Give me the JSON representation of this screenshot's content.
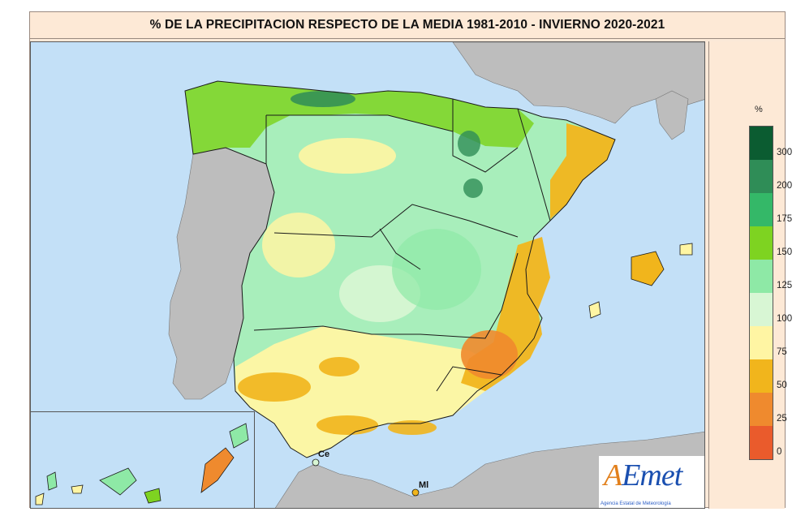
{
  "title": "% DE LA PRECIPITACION RESPECTO DE LA MEDIA  1981-2010 - INVIERNO 2020-2021",
  "legend": {
    "unit": "%",
    "ticks": [
      "300",
      "200",
      "175",
      "150",
      "125",
      "100",
      "75",
      "50",
      "25",
      "0"
    ],
    "colors": [
      "#0b5c31",
      "#2f8d57",
      "#34b868",
      "#7ed321",
      "#8ee9a6",
      "#d8f6d4",
      "#fff5a3",
      "#f1b51c",
      "#ef8a2e",
      "#ea5b2c"
    ]
  },
  "cities": {
    "ceuta": "Ce",
    "melilla": "Ml"
  },
  "logo": {
    "name": "AEmet",
    "subtitle": "Agencia Estatal de Meteorología"
  },
  "colors": {
    "sea": "#c3e0f7",
    "land_outside": "#bdbdbd",
    "border": "#1a1a1a"
  }
}
